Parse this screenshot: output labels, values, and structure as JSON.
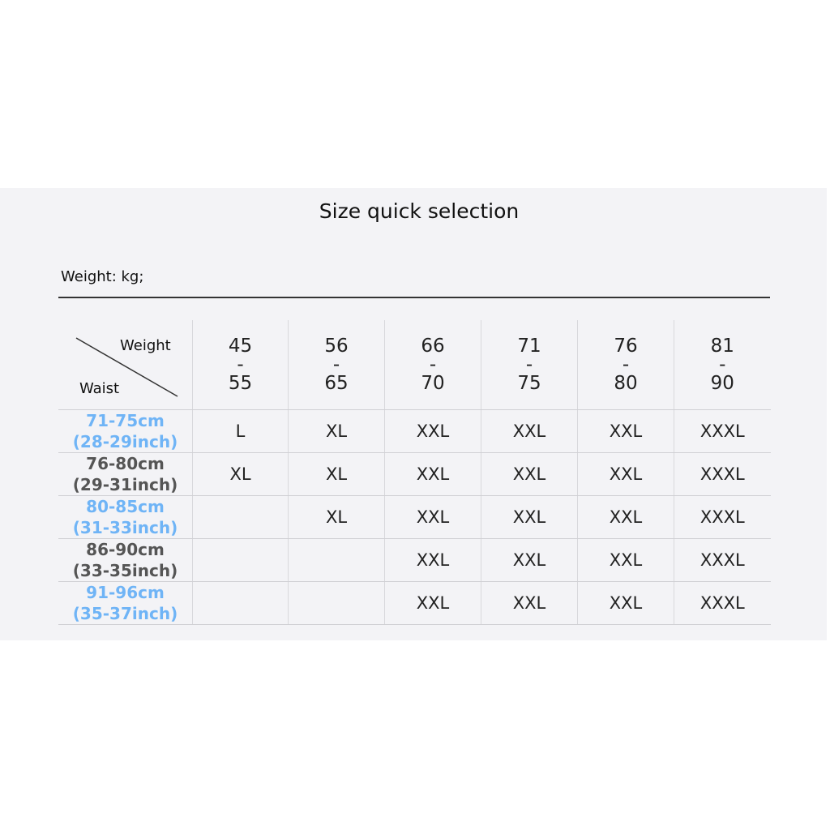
{
  "title": "Size quick selection",
  "unit_note": "Weight: kg;",
  "corner": {
    "top": "Weight",
    "bottom": "Waist"
  },
  "weights": [
    {
      "min": "45",
      "max": "55"
    },
    {
      "min": "56",
      "max": "65"
    },
    {
      "min": "66",
      "max": "70"
    },
    {
      "min": "71",
      "max": "75"
    },
    {
      "min": "76",
      "max": "80"
    },
    {
      "min": "81",
      "max": "90"
    }
  ],
  "rows": [
    {
      "cm": "71-75cm",
      "inch": "(28-29inch)",
      "sizes": [
        "L",
        "XL",
        "XXL",
        "XXL",
        "XXL",
        "XXXL"
      ]
    },
    {
      "cm": "76-80cm",
      "inch": "(29-31inch)",
      "sizes": [
        "XL",
        "XL",
        "XXL",
        "XXL",
        "XXL",
        "XXXL"
      ]
    },
    {
      "cm": "80-85cm",
      "inch": "(31-33inch)",
      "sizes": [
        "",
        "XL",
        "XXL",
        "XXL",
        "XXL",
        "XXXL"
      ]
    },
    {
      "cm": "86-90cm",
      "inch": "(33-35inch)",
      "sizes": [
        "",
        "",
        "XXL",
        "XXL",
        "XXL",
        "XXXL"
      ]
    },
    {
      "cm": "91-96cm",
      "inch": "(35-37inch)",
      "sizes": [
        "",
        "",
        "XXL",
        "XXL",
        "XXL",
        "XXXL"
      ]
    }
  ],
  "colors": {
    "blue_rows": "#6fb4f6",
    "gray_rows": "#555555",
    "panel": "#f3f3f6"
  }
}
